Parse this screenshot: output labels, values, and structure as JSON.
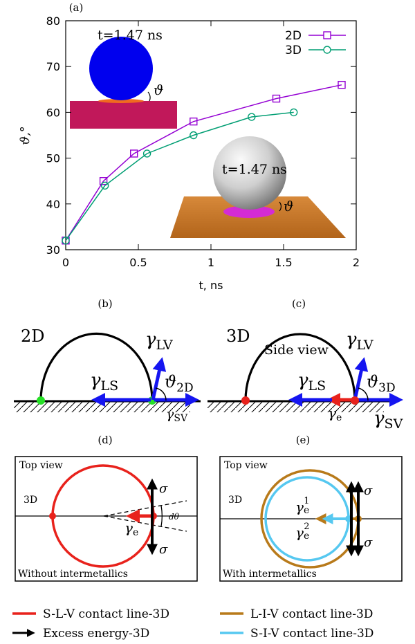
{
  "panels": {
    "a": "(a)",
    "b": "(b)",
    "c": "(c)",
    "d": "(d)",
    "e": "(e)"
  },
  "chart_data": {
    "type": "line",
    "title": "",
    "xlabel": "t, ns",
    "ylabel": "ϑ,°",
    "xlim": [
      0,
      2
    ],
    "ylim": [
      30,
      80
    ],
    "xticks": [
      "0",
      "0.5",
      "1",
      "1.5",
      "2"
    ],
    "yticks": [
      "30",
      "40",
      "50",
      "60",
      "70",
      "80"
    ],
    "grid": false,
    "legend_position": "top-right",
    "series": [
      {
        "name": "2D",
        "color": "#9400d3",
        "marker": "square",
        "x": [
          0,
          0.26,
          0.47,
          0.88,
          1.45,
          1.9
        ],
        "y": [
          32,
          45,
          51,
          58,
          63,
          66
        ]
      },
      {
        "name": "3D",
        "color": "#009e73",
        "marker": "circle",
        "x": [
          0,
          0.27,
          0.56,
          0.88,
          1.28,
          1.57
        ],
        "y": [
          32,
          44,
          51,
          55,
          59,
          60
        ]
      }
    ],
    "annotations": [
      "t=1.47 ns",
      "t=1.47 ns"
    ]
  },
  "inset2d": {
    "time": "t=1.47 ns",
    "angle": "ϑ"
  },
  "inset3d": {
    "time": "t=1.47 ns",
    "angle": "ϑ"
  },
  "panel_b": {
    "dim": "2D",
    "gamma": "γ",
    "lv": "LV",
    "ls": "LS",
    "sv": "SV",
    "theta": "ϑ",
    "theta_sub": "2D"
  },
  "panel_c": {
    "dim": "3D",
    "side": "Side view",
    "gamma": "γ",
    "lv": "LV",
    "ls": "LS",
    "sv": "SV",
    "e": "e",
    "theta": "ϑ",
    "theta_sub": "3D"
  },
  "panel_d": {
    "view": "Top view",
    "dim": "3D",
    "sigma": "σ",
    "gamma": "γ",
    "e": "e",
    "dtheta": "dθ",
    "caption": "Without intermetallics"
  },
  "panel_e": {
    "view": "Top view",
    "dim": "3D",
    "sigma": "σ",
    "gamma": "γ",
    "e": "e",
    "sup1": "1",
    "sup2": "2",
    "caption": "With intermetallics"
  },
  "legend_bottom": [
    {
      "label": "S-L-V contact line-3D",
      "color": "#e8221c",
      "kind": "line"
    },
    {
      "label": "L-I-V contact line-3D",
      "color": "#b87a1a",
      "kind": "line"
    },
    {
      "label": "Excess energy-3D",
      "color": "#000000",
      "kind": "arrow"
    },
    {
      "label": "S-I-V contact line-3D",
      "color": "#56c8f0",
      "kind": "line"
    }
  ]
}
